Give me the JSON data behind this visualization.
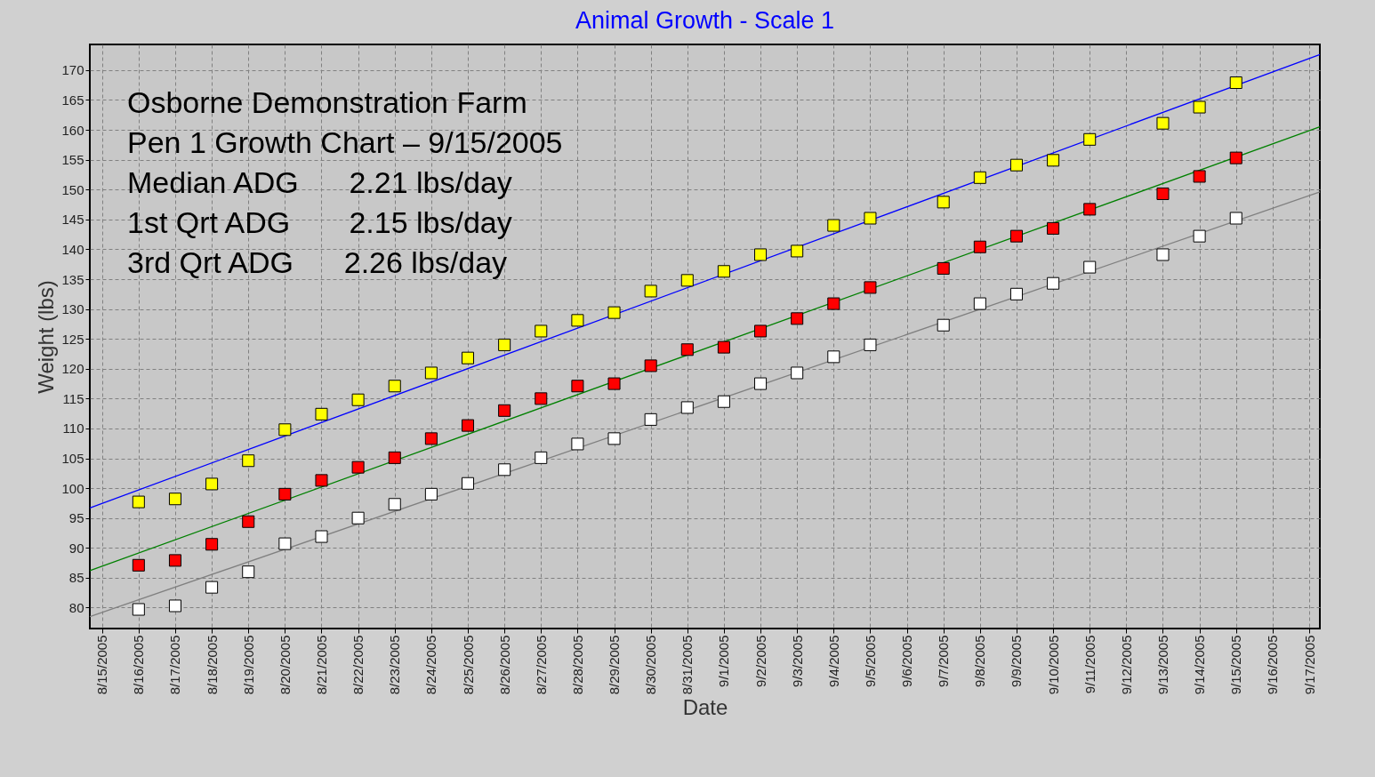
{
  "chart_data": {
    "type": "scatter",
    "title": "Animal Growth - Scale 1",
    "xlabel": "Date",
    "ylabel": "Weight (lbs)",
    "x": [
      "2005-08-16",
      "2005-08-17",
      "2005-08-18",
      "2005-08-19",
      "2005-08-20",
      "2005-08-21",
      "2005-08-22",
      "2005-08-23",
      "2005-08-24",
      "2005-08-25",
      "2005-08-26",
      "2005-08-27",
      "2005-08-28",
      "2005-08-29",
      "2005-08-30",
      "2005-08-31",
      "2005-09-01",
      "2005-09-02",
      "2005-09-03",
      "2005-09-04",
      "2005-09-05",
      "2005-09-07",
      "2005-09-08",
      "2005-09-09",
      "2005-09-10",
      "2005-09-11",
      "2005-09-13",
      "2005-09-14",
      "2005-09-15"
    ],
    "series": [
      {
        "type": "scatter",
        "marker": "square",
        "color": "#ffff00",
        "values": [
          97.7,
          98.2,
          100.7,
          104.6,
          109.8,
          112.4,
          114.8,
          117.1,
          119.3,
          121.8,
          124.0,
          126.3,
          128.1,
          129.4,
          133.0,
          134.8,
          136.3,
          139.1,
          139.7,
          144.0,
          145.2,
          147.9,
          152.0,
          154.1,
          154.9,
          158.4,
          161.1,
          163.8,
          167.9
        ]
      },
      {
        "type": "scatter",
        "marker": "square",
        "color": "#ff0000",
        "values": [
          87.1,
          87.9,
          90.6,
          94.4,
          99.0,
          101.3,
          103.5,
          105.1,
          108.3,
          110.5,
          113.0,
          115.0,
          117.1,
          117.5,
          120.5,
          123.2,
          123.6,
          126.3,
          128.4,
          130.9,
          133.6,
          136.8,
          140.4,
          142.2,
          143.5,
          146.7,
          149.3,
          152.2,
          155.3
        ]
      },
      {
        "type": "scatter",
        "marker": "square",
        "color": "#ffffff",
        "values": [
          79.7,
          80.3,
          83.4,
          86.0,
          90.7,
          91.9,
          95.0,
          97.3,
          99.0,
          100.8,
          103.1,
          105.1,
          107.4,
          108.3,
          111.5,
          113.5,
          114.5,
          117.5,
          119.3,
          122.0,
          124.0,
          127.3,
          130.9,
          132.5,
          134.3,
          137.0,
          139.1,
          142.2,
          145.2
        ]
      },
      {
        "type": "line",
        "marker": "none",
        "color": "#0000ff",
        "x": [
          "2005-08-14T16:00",
          "2005-09-17T07:00"
        ],
        "values": [
          96.7,
          172.6
        ]
      },
      {
        "type": "line",
        "marker": "none",
        "color": "#008000",
        "x": [
          "2005-08-14T16:00",
          "2005-09-17T07:00"
        ],
        "values": [
          86.2,
          160.5
        ]
      },
      {
        "type": "line",
        "marker": "none",
        "color": "#808080",
        "x": [
          "2005-08-14T16:00",
          "2005-09-17T07:00"
        ],
        "values": [
          78.5,
          149.6
        ]
      }
    ],
    "xlim": [
      "2005-08-14T16:00",
      "2005-09-17T07:00"
    ],
    "xticks": [
      {
        "value": "2005-08-15",
        "label": "8/15/2005"
      },
      {
        "value": "2005-08-16",
        "label": "8/16/2005"
      },
      {
        "value": "2005-08-17",
        "label": "8/17/2005"
      },
      {
        "value": "2005-08-18",
        "label": "8/18/2005"
      },
      {
        "value": "2005-08-19",
        "label": "8/19/2005"
      },
      {
        "value": "2005-08-20",
        "label": "8/20/2005"
      },
      {
        "value": "2005-08-21",
        "label": "8/21/2005"
      },
      {
        "value": "2005-08-22",
        "label": "8/22/2005"
      },
      {
        "value": "2005-08-23",
        "label": "8/23/2005"
      },
      {
        "value": "2005-08-24",
        "label": "8/24/2005"
      },
      {
        "value": "2005-08-25",
        "label": "8/25/2005"
      },
      {
        "value": "2005-08-26",
        "label": "8/26/2005"
      },
      {
        "value": "2005-08-27",
        "label": "8/27/2005"
      },
      {
        "value": "2005-08-28",
        "label": "8/28/2005"
      },
      {
        "value": "2005-08-29",
        "label": "8/29/2005"
      },
      {
        "value": "2005-08-30",
        "label": "8/30/2005"
      },
      {
        "value": "2005-08-31",
        "label": "8/31/2005"
      },
      {
        "value": "2005-09-01",
        "label": "9/1/2005"
      },
      {
        "value": "2005-09-02",
        "label": "9/2/2005"
      },
      {
        "value": "2005-09-03",
        "label": "9/3/2005"
      },
      {
        "value": "2005-09-04",
        "label": "9/4/2005"
      },
      {
        "value": "2005-09-05",
        "label": "9/5/2005"
      },
      {
        "value": "2005-09-06",
        "label": "9/6/2005"
      },
      {
        "value": "2005-09-07",
        "label": "9/7/2005"
      },
      {
        "value": "2005-09-08",
        "label": "9/8/2005"
      },
      {
        "value": "2005-09-09",
        "label": "9/9/2005"
      },
      {
        "value": "2005-09-10",
        "label": "9/10/2005"
      },
      {
        "value": "2005-09-11",
        "label": "9/11/2005"
      },
      {
        "value": "2005-09-12",
        "label": "9/12/2005"
      },
      {
        "value": "2005-09-13",
        "label": "9/13/2005"
      },
      {
        "value": "2005-09-14",
        "label": "9/14/2005"
      },
      {
        "value": "2005-09-15",
        "label": "9/15/2005"
      },
      {
        "value": "2005-09-16",
        "label": "9/16/2005"
      },
      {
        "value": "2005-09-17",
        "label": "9/17/2005"
      }
    ],
    "ylim": [
      76.5,
      174.3
    ],
    "yticks": [
      80,
      85,
      90,
      95,
      100,
      105,
      110,
      115,
      120,
      125,
      130,
      135,
      140,
      145,
      150,
      155,
      160,
      165,
      170
    ],
    "grid": true,
    "line_style": "solid",
    "annotations": [
      "Osborne Demonstration Farm",
      "Pen 1 Growth Chart – 9/15/2005",
      "Median ADG      2.21 lbs/day",
      "1st Qrt ADG       2.15 lbs/day",
      "3rd Qrt ADG      2.26 lbs/day"
    ]
  }
}
